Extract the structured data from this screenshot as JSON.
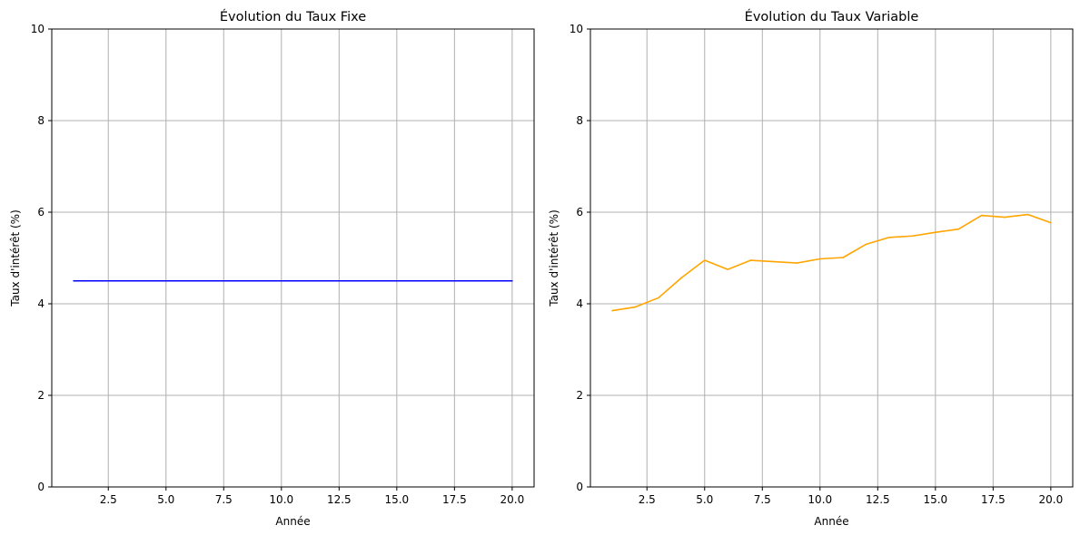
{
  "chart_data": [
    {
      "type": "line",
      "title": "Évolution du Taux Fixe",
      "xlabel": "Année",
      "ylabel": "Taux d'intérêt (%)",
      "xlim": [
        0.05,
        20.95
      ],
      "ylim": [
        0,
        10
      ],
      "xticks": [
        2.5,
        5.0,
        7.5,
        10.0,
        12.5,
        15.0,
        17.5,
        20.0
      ],
      "xtick_labels": [
        "2.5",
        "5.0",
        "7.5",
        "10.0",
        "12.5",
        "15.0",
        "17.5",
        "20.0"
      ],
      "yticks": [
        0,
        2,
        4,
        6,
        8,
        10
      ],
      "ytick_labels": [
        "0",
        "2",
        "4",
        "6",
        "8",
        "10"
      ],
      "grid": true,
      "x": [
        1,
        2,
        3,
        4,
        5,
        6,
        7,
        8,
        9,
        10,
        11,
        12,
        13,
        14,
        15,
        16,
        17,
        18,
        19,
        20
      ],
      "series": [
        {
          "color": "#0000ff",
          "values": [
            4.5,
            4.5,
            4.5,
            4.5,
            4.5,
            4.5,
            4.5,
            4.5,
            4.5,
            4.5,
            4.5,
            4.5,
            4.5,
            4.5,
            4.5,
            4.5,
            4.5,
            4.5,
            4.5,
            4.5
          ]
        }
      ]
    },
    {
      "type": "line",
      "title": "Évolution du Taux Variable",
      "xlabel": "Année",
      "ylabel": "Taux d'intérêt (%)",
      "xlim": [
        0.05,
        20.95
      ],
      "ylim": [
        0,
        10
      ],
      "xticks": [
        2.5,
        5.0,
        7.5,
        10.0,
        12.5,
        15.0,
        17.5,
        20.0
      ],
      "xtick_labels": [
        "2.5",
        "5.0",
        "7.5",
        "10.0",
        "12.5",
        "15.0",
        "17.5",
        "20.0"
      ],
      "yticks": [
        0,
        2,
        4,
        6,
        8,
        10
      ],
      "ytick_labels": [
        "0",
        "2",
        "4",
        "6",
        "8",
        "10"
      ],
      "grid": true,
      "x": [
        1,
        2,
        3,
        4,
        5,
        6,
        7,
        8,
        9,
        10,
        11,
        12,
        13,
        14,
        15,
        16,
        17,
        18,
        19,
        20
      ],
      "series": [
        {
          "color": "#ffa500",
          "values": [
            3.85,
            3.93,
            4.13,
            4.57,
            4.95,
            4.75,
            4.95,
            4.92,
            4.89,
            4.98,
            5.01,
            5.3,
            5.45,
            5.48,
            5.56,
            5.63,
            5.93,
            5.89,
            5.95,
            5.77
          ]
        }
      ]
    }
  ],
  "style": {
    "grid_color": "#b0b0b0",
    "axis_color": "#000000",
    "background": "#ffffff"
  }
}
